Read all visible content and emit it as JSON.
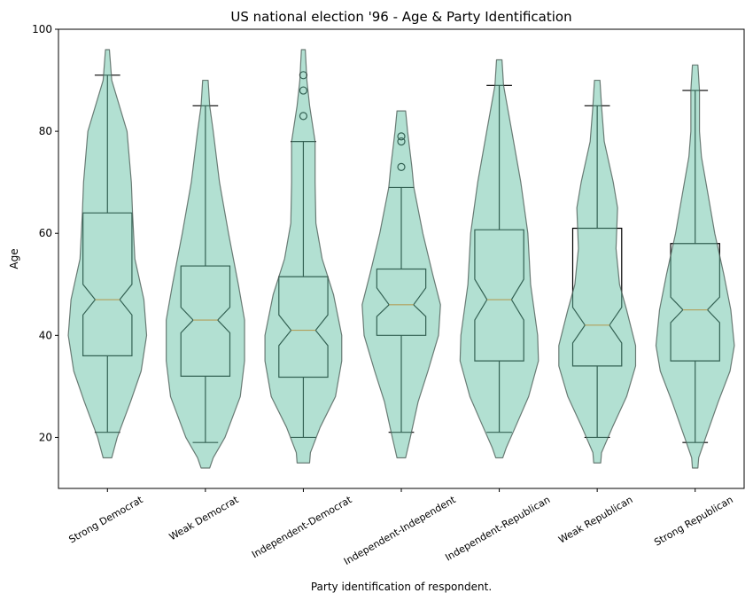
{
  "chart_data": {
    "type": "violin+boxplot",
    "title": "US national election '96 - Age & Party Identification",
    "xlabel": "Party identification of respondent.",
    "ylabel": "Age",
    "ylim": [
      10,
      100
    ],
    "yticks": [
      20,
      40,
      60,
      80,
      100
    ],
    "grid": false,
    "notched_boxes": true,
    "colors": {
      "violin_fill": "#66c2a5",
      "violin_alpha": 0.5,
      "violin_edge": "#4d5e57",
      "median": "#ff7f0e",
      "box": "#000000"
    },
    "categories": [
      "Strong Democrat",
      "Weak Democrat",
      "Independent-Democrat",
      "Independent-Independent",
      "Independent-Republican",
      "Weak Republican",
      "Strong Republican"
    ],
    "boxes": [
      {
        "whisker_low": 21,
        "q1": 36,
        "median": 47,
        "q3": 64,
        "whisker_high": 91,
        "notch": [
          44,
          50
        ],
        "outliers": []
      },
      {
        "whisker_low": 19,
        "q1": 32,
        "median": 43,
        "q3": 53.6,
        "whisker_high": 85,
        "notch": [
          40.5,
          45.5
        ],
        "outliers": []
      },
      {
        "whisker_low": 20,
        "q1": 31.8,
        "median": 41,
        "q3": 51.5,
        "whisker_high": 78,
        "notch": [
          38,
          44
        ],
        "outliers": [
          83,
          88,
          91
        ]
      },
      {
        "whisker_low": 21,
        "q1": 40,
        "median": 46,
        "q3": 53,
        "whisker_high": 69,
        "notch": [
          43.7,
          49.3
        ],
        "outliers": [
          73,
          78,
          79
        ]
      },
      {
        "whisker_low": 21,
        "q1": 35,
        "median": 47,
        "q3": 60.7,
        "whisker_high": 89,
        "notch": [
          43,
          51
        ],
        "outliers": []
      },
      {
        "whisker_low": 20,
        "q1": 34,
        "median": 42,
        "q3": 61,
        "whisker_high": 85,
        "notch": [
          38.5,
          45.5
        ],
        "outliers": []
      },
      {
        "whisker_low": 19,
        "q1": 35,
        "median": 45,
        "q3": 58,
        "whisker_high": 88,
        "notch": [
          42.5,
          47.5
        ],
        "outliers": []
      }
    ],
    "violins": [
      [
        [
          16,
          0.11
        ],
        [
          20,
          0.25
        ],
        [
          27,
          0.59
        ],
        [
          33,
          0.86
        ],
        [
          40,
          1
        ],
        [
          47,
          0.93
        ],
        [
          55,
          0.7
        ],
        [
          64,
          0.64
        ],
        [
          70,
          0.61
        ],
        [
          80,
          0.5
        ],
        [
          90,
          0.11
        ],
        [
          96,
          0.05
        ]
      ],
      [
        [
          14,
          0.11
        ],
        [
          16,
          0.2
        ],
        [
          20,
          0.5
        ],
        [
          28,
          0.89
        ],
        [
          35,
          1
        ],
        [
          43,
          1
        ],
        [
          50,
          0.84
        ],
        [
          60,
          0.59
        ],
        [
          70,
          0.36
        ],
        [
          80,
          0.2
        ],
        [
          85,
          0.11
        ],
        [
          90,
          0.07
        ]
      ],
      [
        [
          15,
          0.16
        ],
        [
          17,
          0.18
        ],
        [
          22,
          0.43
        ],
        [
          28,
          0.82
        ],
        [
          35,
          0.98
        ],
        [
          40,
          0.98
        ],
        [
          48,
          0.77
        ],
        [
          55,
          0.48
        ],
        [
          62,
          0.32
        ],
        [
          70,
          0.3
        ],
        [
          78,
          0.3
        ],
        [
          85,
          0.16
        ],
        [
          90,
          0.09
        ],
        [
          96,
          0.05
        ]
      ],
      [
        [
          16,
          0.11
        ],
        [
          20,
          0.23
        ],
        [
          27,
          0.43
        ],
        [
          33,
          0.68
        ],
        [
          40,
          0.95
        ],
        [
          46,
          1
        ],
        [
          52,
          0.8
        ],
        [
          60,
          0.55
        ],
        [
          69,
          0.32
        ],
        [
          73,
          0.27
        ],
        [
          80,
          0.16
        ],
        [
          84,
          0.11
        ]
      ],
      [
        [
          16,
          0.09
        ],
        [
          18,
          0.18
        ],
        [
          22,
          0.41
        ],
        [
          28,
          0.75
        ],
        [
          35,
          1
        ],
        [
          40,
          0.98
        ],
        [
          50,
          0.8
        ],
        [
          60,
          0.73
        ],
        [
          70,
          0.55
        ],
        [
          80,
          0.32
        ],
        [
          89,
          0.11
        ],
        [
          94,
          0.07
        ]
      ],
      [
        [
          15,
          0.09
        ],
        [
          17,
          0.11
        ],
        [
          22,
          0.39
        ],
        [
          28,
          0.75
        ],
        [
          34,
          0.98
        ],
        [
          38,
          0.98
        ],
        [
          45,
          0.75
        ],
        [
          50,
          0.57
        ],
        [
          57,
          0.48
        ],
        [
          65,
          0.52
        ],
        [
          70,
          0.41
        ],
        [
          78,
          0.18
        ],
        [
          85,
          0.11
        ],
        [
          90,
          0.07
        ]
      ],
      [
        [
          14,
          0.07
        ],
        [
          16,
          0.09
        ],
        [
          20,
          0.27
        ],
        [
          27,
          0.59
        ],
        [
          33,
          0.89
        ],
        [
          38,
          1
        ],
        [
          45,
          0.91
        ],
        [
          52,
          0.73
        ],
        [
          60,
          0.5
        ],
        [
          68,
          0.32
        ],
        [
          75,
          0.16
        ],
        [
          80,
          0.11
        ],
        [
          88,
          0.11
        ],
        [
          93,
          0.07
        ]
      ]
    ]
  }
}
